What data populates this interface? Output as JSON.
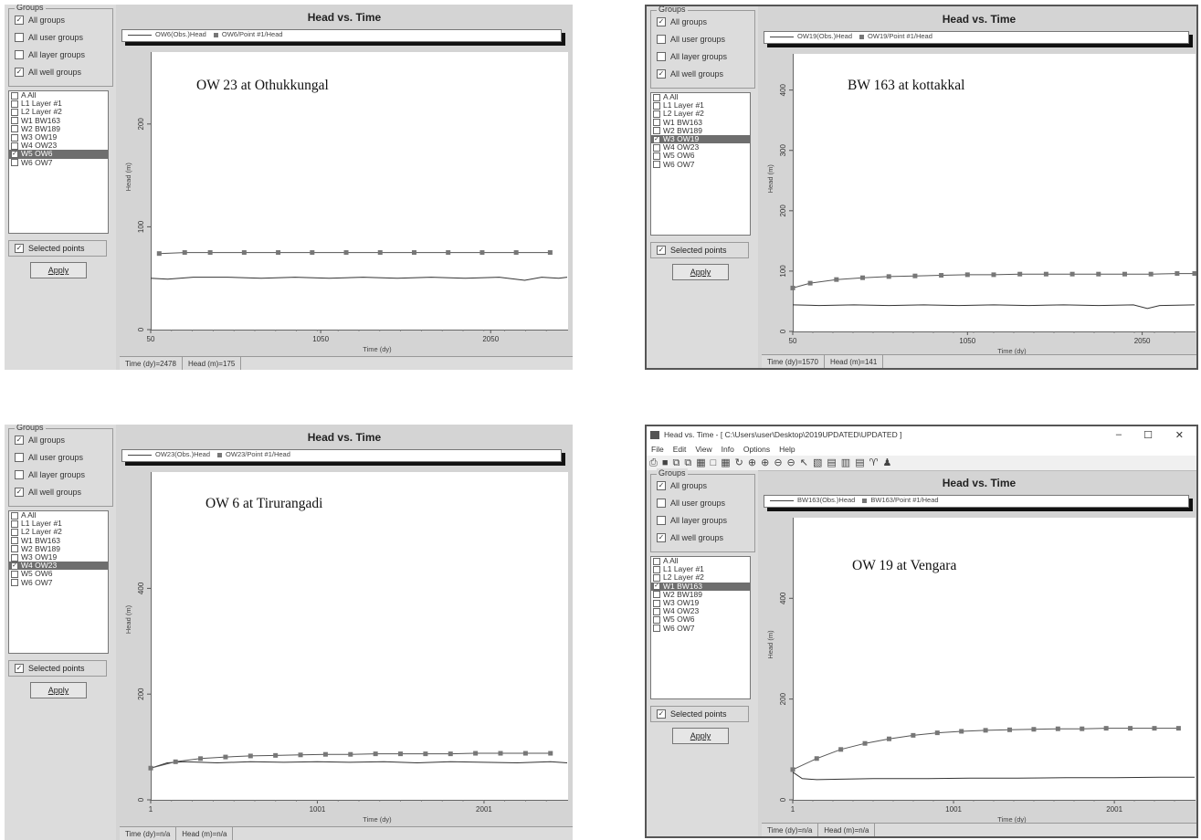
{
  "panels": [
    {
      "id": "p1",
      "window_chrome": false,
      "groups_legend": "Groups",
      "group_checks": [
        {
          "label": "All groups",
          "checked": true
        },
        {
          "label": "All user groups",
          "checked": false
        },
        {
          "label": "All layer groups",
          "checked": false
        },
        {
          "label": "All well groups",
          "checked": true
        }
      ],
      "well_list": [
        {
          "label": "A All",
          "checked": false,
          "selected": false
        },
        {
          "label": "L1 Layer #1",
          "checked": false,
          "selected": false
        },
        {
          "label": "L2 Layer #2",
          "checked": false,
          "selected": false
        },
        {
          "label": "W1 BW163",
          "checked": false,
          "selected": false
        },
        {
          "label": "W2 BW189",
          "checked": false,
          "selected": false
        },
        {
          "label": "W3 OW19",
          "checked": false,
          "selected": false
        },
        {
          "label": "W4 OW23",
          "checked": false,
          "selected": false
        },
        {
          "label": "W5 OW6",
          "checked": true,
          "selected": true
        },
        {
          "label": "W6 OW7",
          "checked": false,
          "selected": false
        }
      ],
      "selected_points": "Selected points",
      "apply": "Apply",
      "plot_title": "Head vs. Time",
      "legend_obs": "OW6(Obs.)Head",
      "legend_pt": "OW6/Point #1/Head",
      "annotation": "OW 23 at Othukkungal",
      "ylabel": "Head (m)",
      "xlabel": "Time (dy)",
      "status_time": "Time (dy)=2478",
      "status_head": "Head (m)=175",
      "chart_data": {
        "type": "line",
        "xlabel": "Time (dy)",
        "ylabel": "Head (m)",
        "xlim": [
          50,
          2500
        ],
        "ylim": [
          0,
          270
        ],
        "x_ticks": [
          50,
          1050,
          2050
        ],
        "x_tick_labels": [
          "50",
          "1050",
          "2050"
        ],
        "y_ticks": [
          0,
          100,
          200
        ],
        "y_tick_labels": [
          "0",
          "100",
          "200"
        ],
        "series": [
          {
            "name": "OW6(Obs.)Head",
            "marker": "none",
            "x": [
              50,
              150,
              300,
              500,
              700,
              900,
              1100,
              1300,
              1500,
              1700,
              1900,
              2100,
              2250,
              2350,
              2450,
              2500
            ],
            "y": [
              50,
              49,
              51,
              51,
              50,
              51,
              50,
              51,
              50,
              51,
              50,
              51,
              48,
              51,
              50,
              51
            ]
          },
          {
            "name": "OW6/Point #1/Head",
            "marker": "square",
            "x": [
              100,
              250,
              400,
              600,
              800,
              1000,
              1200,
              1400,
              1600,
              1800,
              2000,
              2200,
              2400
            ],
            "y": [
              74,
              75,
              75,
              75,
              75,
              75,
              75,
              75,
              75,
              75,
              75,
              75,
              75
            ]
          }
        ]
      }
    },
    {
      "id": "p2",
      "window_chrome": false,
      "groups_legend": "Groups",
      "group_checks": [
        {
          "label": "All groups",
          "checked": true
        },
        {
          "label": "All user groups",
          "checked": false
        },
        {
          "label": "All layer groups",
          "checked": false
        },
        {
          "label": "All well groups",
          "checked": true
        }
      ],
      "well_list": [
        {
          "label": "A All",
          "checked": false,
          "selected": false
        },
        {
          "label": "L1 Layer #1",
          "checked": false,
          "selected": false
        },
        {
          "label": "L2 Layer #2",
          "checked": false,
          "selected": false
        },
        {
          "label": "W1 BW163",
          "checked": false,
          "selected": false
        },
        {
          "label": "W2 BW189",
          "checked": false,
          "selected": false
        },
        {
          "label": "W3 OW19",
          "checked": true,
          "selected": true
        },
        {
          "label": "W4 OW23",
          "checked": false,
          "selected": false
        },
        {
          "label": "W5 OW6",
          "checked": false,
          "selected": false
        },
        {
          "label": "W6 OW7",
          "checked": false,
          "selected": false
        }
      ],
      "selected_points": "Selected points",
      "apply": "Apply",
      "plot_title": "Head vs. Time",
      "legend_obs": "OW19(Obs.)Head",
      "legend_pt": "OW19/Point #1/Head",
      "annotation": "BW 163 at kottakkal",
      "ylabel": "Head (m)",
      "xlabel": "Time (dy)",
      "status_time": "Time (dy)=1570",
      "status_head": "Head (m)=141",
      "chart_data": {
        "type": "line",
        "xlabel": "Time (dy)",
        "ylabel": "Head (m)",
        "xlim": [
          50,
          2350
        ],
        "ylim": [
          0,
          460
        ],
        "x_ticks": [
          50,
          1050,
          2050
        ],
        "x_tick_labels": [
          "50",
          "1050",
          "2050"
        ],
        "y_ticks": [
          0,
          100,
          200,
          300,
          400
        ],
        "y_tick_labels": [
          "0",
          "100",
          "200",
          "300",
          "400"
        ],
        "series": [
          {
            "name": "OW19(Obs.)Head",
            "marker": "none",
            "x": [
              50,
              200,
              400,
              600,
              800,
              1000,
              1200,
              1400,
              1600,
              1800,
              2000,
              2080,
              2150,
              2350
            ],
            "y": [
              44,
              43,
              44,
              43,
              44,
              43,
              44,
              43,
              44,
              43,
              44,
              38,
              43,
              44
            ]
          },
          {
            "name": "OW19/Point #1/Head",
            "marker": "square",
            "x": [
              50,
              150,
              300,
              450,
              600,
              750,
              900,
              1050,
              1200,
              1350,
              1500,
              1650,
              1800,
              1950,
              2100,
              2250,
              2350
            ],
            "y": [
              72,
              80,
              86,
              89,
              91,
              92,
              93,
              94,
              94,
              95,
              95,
              95,
              95,
              95,
              95,
              96,
              96
            ]
          }
        ]
      }
    },
    {
      "id": "p3",
      "window_chrome": false,
      "groups_legend": "Groups",
      "group_checks": [
        {
          "label": "All groups",
          "checked": true
        },
        {
          "label": "All user groups",
          "checked": false
        },
        {
          "label": "All layer groups",
          "checked": false
        },
        {
          "label": "All well groups",
          "checked": true
        }
      ],
      "well_list": [
        {
          "label": "A All",
          "checked": false,
          "selected": false
        },
        {
          "label": "L1 Layer #1",
          "checked": false,
          "selected": false
        },
        {
          "label": "L2 Layer #2",
          "checked": false,
          "selected": false
        },
        {
          "label": "W1 BW163",
          "checked": false,
          "selected": false
        },
        {
          "label": "W2 BW189",
          "checked": false,
          "selected": false
        },
        {
          "label": "W3 OW19",
          "checked": false,
          "selected": false
        },
        {
          "label": "W4 OW23",
          "checked": true,
          "selected": true
        },
        {
          "label": "W5 OW6",
          "checked": false,
          "selected": false
        },
        {
          "label": "W6 OW7",
          "checked": false,
          "selected": false
        }
      ],
      "selected_points": "Selected points",
      "apply": "Apply",
      "plot_title": "Head vs. Time",
      "legend_obs": "OW23(Obs.)Head",
      "legend_pt": "OW23/Point #1/Head",
      "annotation": "OW 6 at Tirurangadi",
      "ylabel": "Head (m)",
      "xlabel": "Time (dy)",
      "status_time": "Time (dy)=n/a",
      "status_head": "Head (m)=n/a",
      "chart_data": {
        "type": "line",
        "xlabel": "Time (dy)",
        "ylabel": "Head (m)",
        "xlim": [
          1,
          2500
        ],
        "ylim": [
          0,
          620
        ],
        "x_ticks": [
          1,
          1001,
          2001
        ],
        "x_tick_labels": [
          "1",
          "1001",
          "2001"
        ],
        "y_ticks": [
          0,
          200,
          400
        ],
        "y_tick_labels": [
          "0",
          "200",
          "400"
        ],
        "series": [
          {
            "name": "OW23(Obs.)Head",
            "marker": "none",
            "x": [
              1,
              100,
              200,
              400,
              600,
              800,
              1000,
              1200,
              1400,
              1600,
              1800,
              2000,
              2200,
              2400,
              2500
            ],
            "y": [
              60,
              70,
              72,
              70,
              72,
              71,
              72,
              71,
              72,
              70,
              72,
              71,
              70,
              72,
              70
            ]
          },
          {
            "name": "OW23/Point #1/Head",
            "marker": "square",
            "x": [
              1,
              150,
              300,
              450,
              600,
              750,
              900,
              1050,
              1200,
              1350,
              1500,
              1650,
              1800,
              1950,
              2100,
              2250,
              2400
            ],
            "y": [
              60,
              72,
              78,
              81,
              83,
              84,
              85,
              86,
              86,
              87,
              87,
              87,
              87,
              88,
              88,
              88,
              88
            ]
          }
        ]
      }
    },
    {
      "id": "p4",
      "window_chrome": true,
      "window_title": "Head vs. Time - [ C:\\Users\\user\\Desktop\\2019UPDATED\\UPDATED ]",
      "menu": [
        "File",
        "Edit",
        "View",
        "Info",
        "Options",
        "Help"
      ],
      "toolbar_icons": [
        "print-icon",
        "save-icon",
        "copy-icon",
        "paste-icon",
        "grid-icon",
        "box-icon",
        "chart-icon",
        "rotate-icon",
        "zoom-in-icon",
        "zoom-in-2-icon",
        "zoom-out-icon",
        "zoom-out-2-icon",
        "pointer-icon",
        "map-icon",
        "page-icon",
        "table-icon",
        "list-icon",
        "binoculars-icon",
        "people-icon"
      ],
      "groups_legend": "Groups",
      "group_checks": [
        {
          "label": "All groups",
          "checked": true
        },
        {
          "label": "All user groups",
          "checked": false
        },
        {
          "label": "All layer groups",
          "checked": false
        },
        {
          "label": "All well groups",
          "checked": true
        }
      ],
      "well_list": [
        {
          "label": "A All",
          "checked": false,
          "selected": false
        },
        {
          "label": "L1 Layer #1",
          "checked": false,
          "selected": false
        },
        {
          "label": "L2 Layer #2",
          "checked": false,
          "selected": false
        },
        {
          "label": "W1 BW163",
          "checked": true,
          "selected": true
        },
        {
          "label": "W2 BW189",
          "checked": false,
          "selected": false
        },
        {
          "label": "W3 OW19",
          "checked": false,
          "selected": false
        },
        {
          "label": "W4 OW23",
          "checked": false,
          "selected": false
        },
        {
          "label": "W5 OW6",
          "checked": false,
          "selected": false
        },
        {
          "label": "W6 OW7",
          "checked": false,
          "selected": false
        }
      ],
      "selected_points": "Selected points",
      "apply": "Apply",
      "plot_title": "Head vs. Time",
      "legend_obs": "BW163(Obs.)Head",
      "legend_pt": "BW163/Point #1/Head",
      "annotation": "OW 19 at Vengara",
      "ylabel": "Head (m)",
      "xlabel": "Time (dy)",
      "status_time": "Time (dy)=n/a",
      "status_head": "Head (m)=n/a",
      "chart_data": {
        "type": "line",
        "xlabel": "Time (dy)",
        "ylabel": "Head (m)",
        "xlim": [
          1,
          2500
        ],
        "ylim": [
          0,
          560
        ],
        "x_ticks": [
          1,
          1001,
          2001
        ],
        "x_tick_labels": [
          "1",
          "1001",
          "2001"
        ],
        "y_ticks": [
          0,
          200,
          400
        ],
        "y_tick_labels": [
          "0",
          "200",
          "400"
        ],
        "series": [
          {
            "name": "BW163(Obs.)Head",
            "marker": "none",
            "x": [
              1,
              60,
              150,
              300,
              500,
              800,
              1100,
              1400,
              1700,
              2000,
              2300,
              2500
            ],
            "y": [
              55,
              42,
              40,
              41,
              42,
              42,
              43,
              43,
              44,
              44,
              45,
              45
            ]
          },
          {
            "name": "BW163/Point #1/Head",
            "marker": "square",
            "x": [
              1,
              150,
              300,
              450,
              600,
              750,
              900,
              1050,
              1200,
              1350,
              1500,
              1650,
              1800,
              1950,
              2100,
              2250,
              2400
            ],
            "y": [
              60,
              82,
              100,
              112,
              121,
              128,
              133,
              136,
              138,
              139,
              140,
              141,
              141,
              142,
              142,
              142,
              142
            ]
          }
        ]
      }
    }
  ]
}
